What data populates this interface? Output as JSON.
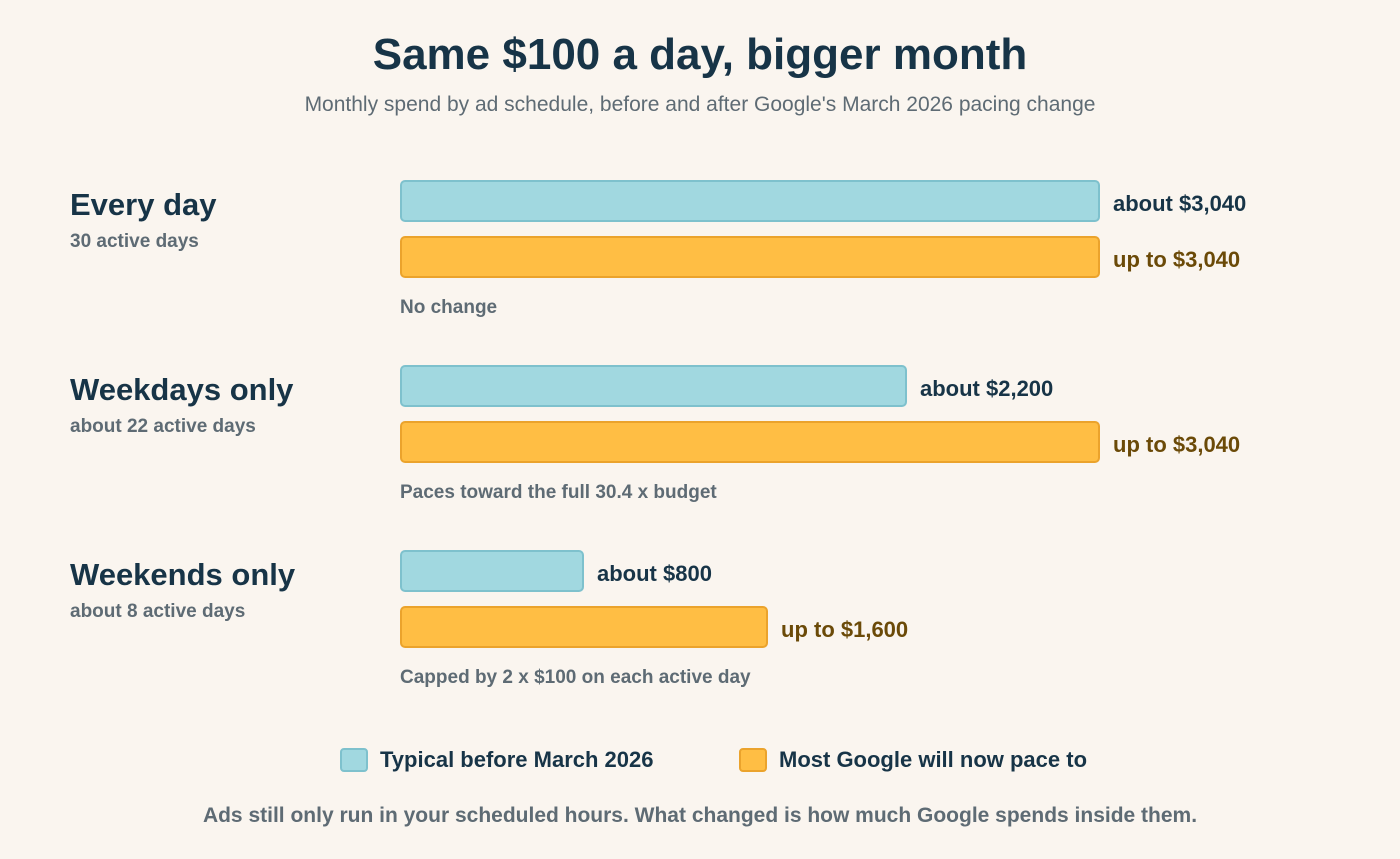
{
  "chart_data": {
    "type": "bar",
    "orientation": "horizontal",
    "title": "Same $100 a day, bigger month",
    "subtitle": "Monthly spend by ad schedule, before and after Google's March 2026 pacing change",
    "categories": [
      "Every day",
      "Weekdays only",
      "Weekends only"
    ],
    "category_subtitles": [
      "30 active days",
      "about 22 active days",
      "about 8 active days"
    ],
    "series": [
      {
        "name": "Typical before March 2026",
        "color": "#a1d8e0",
        "values": [
          3040,
          2200,
          800
        ],
        "labels": [
          "about $3,040",
          "about $2,200",
          "about $800"
        ]
      },
      {
        "name": "Most Google will now pace to",
        "color": "#ffbe44",
        "values": [
          3040,
          3040,
          1600
        ],
        "labels": [
          "up to $3,040",
          "up to $3,040",
          "up to $1,600"
        ]
      }
    ],
    "notes": [
      "No change",
      "Paces toward the full 30.4 x budget",
      "Capped by 2 x $100 on each active day"
    ],
    "xlim": [
      0,
      3040
    ],
    "grid": false,
    "legend_position": "bottom",
    "footer": "Ads still only run in your scheduled hours. What changed is how much Google spends inside them."
  }
}
